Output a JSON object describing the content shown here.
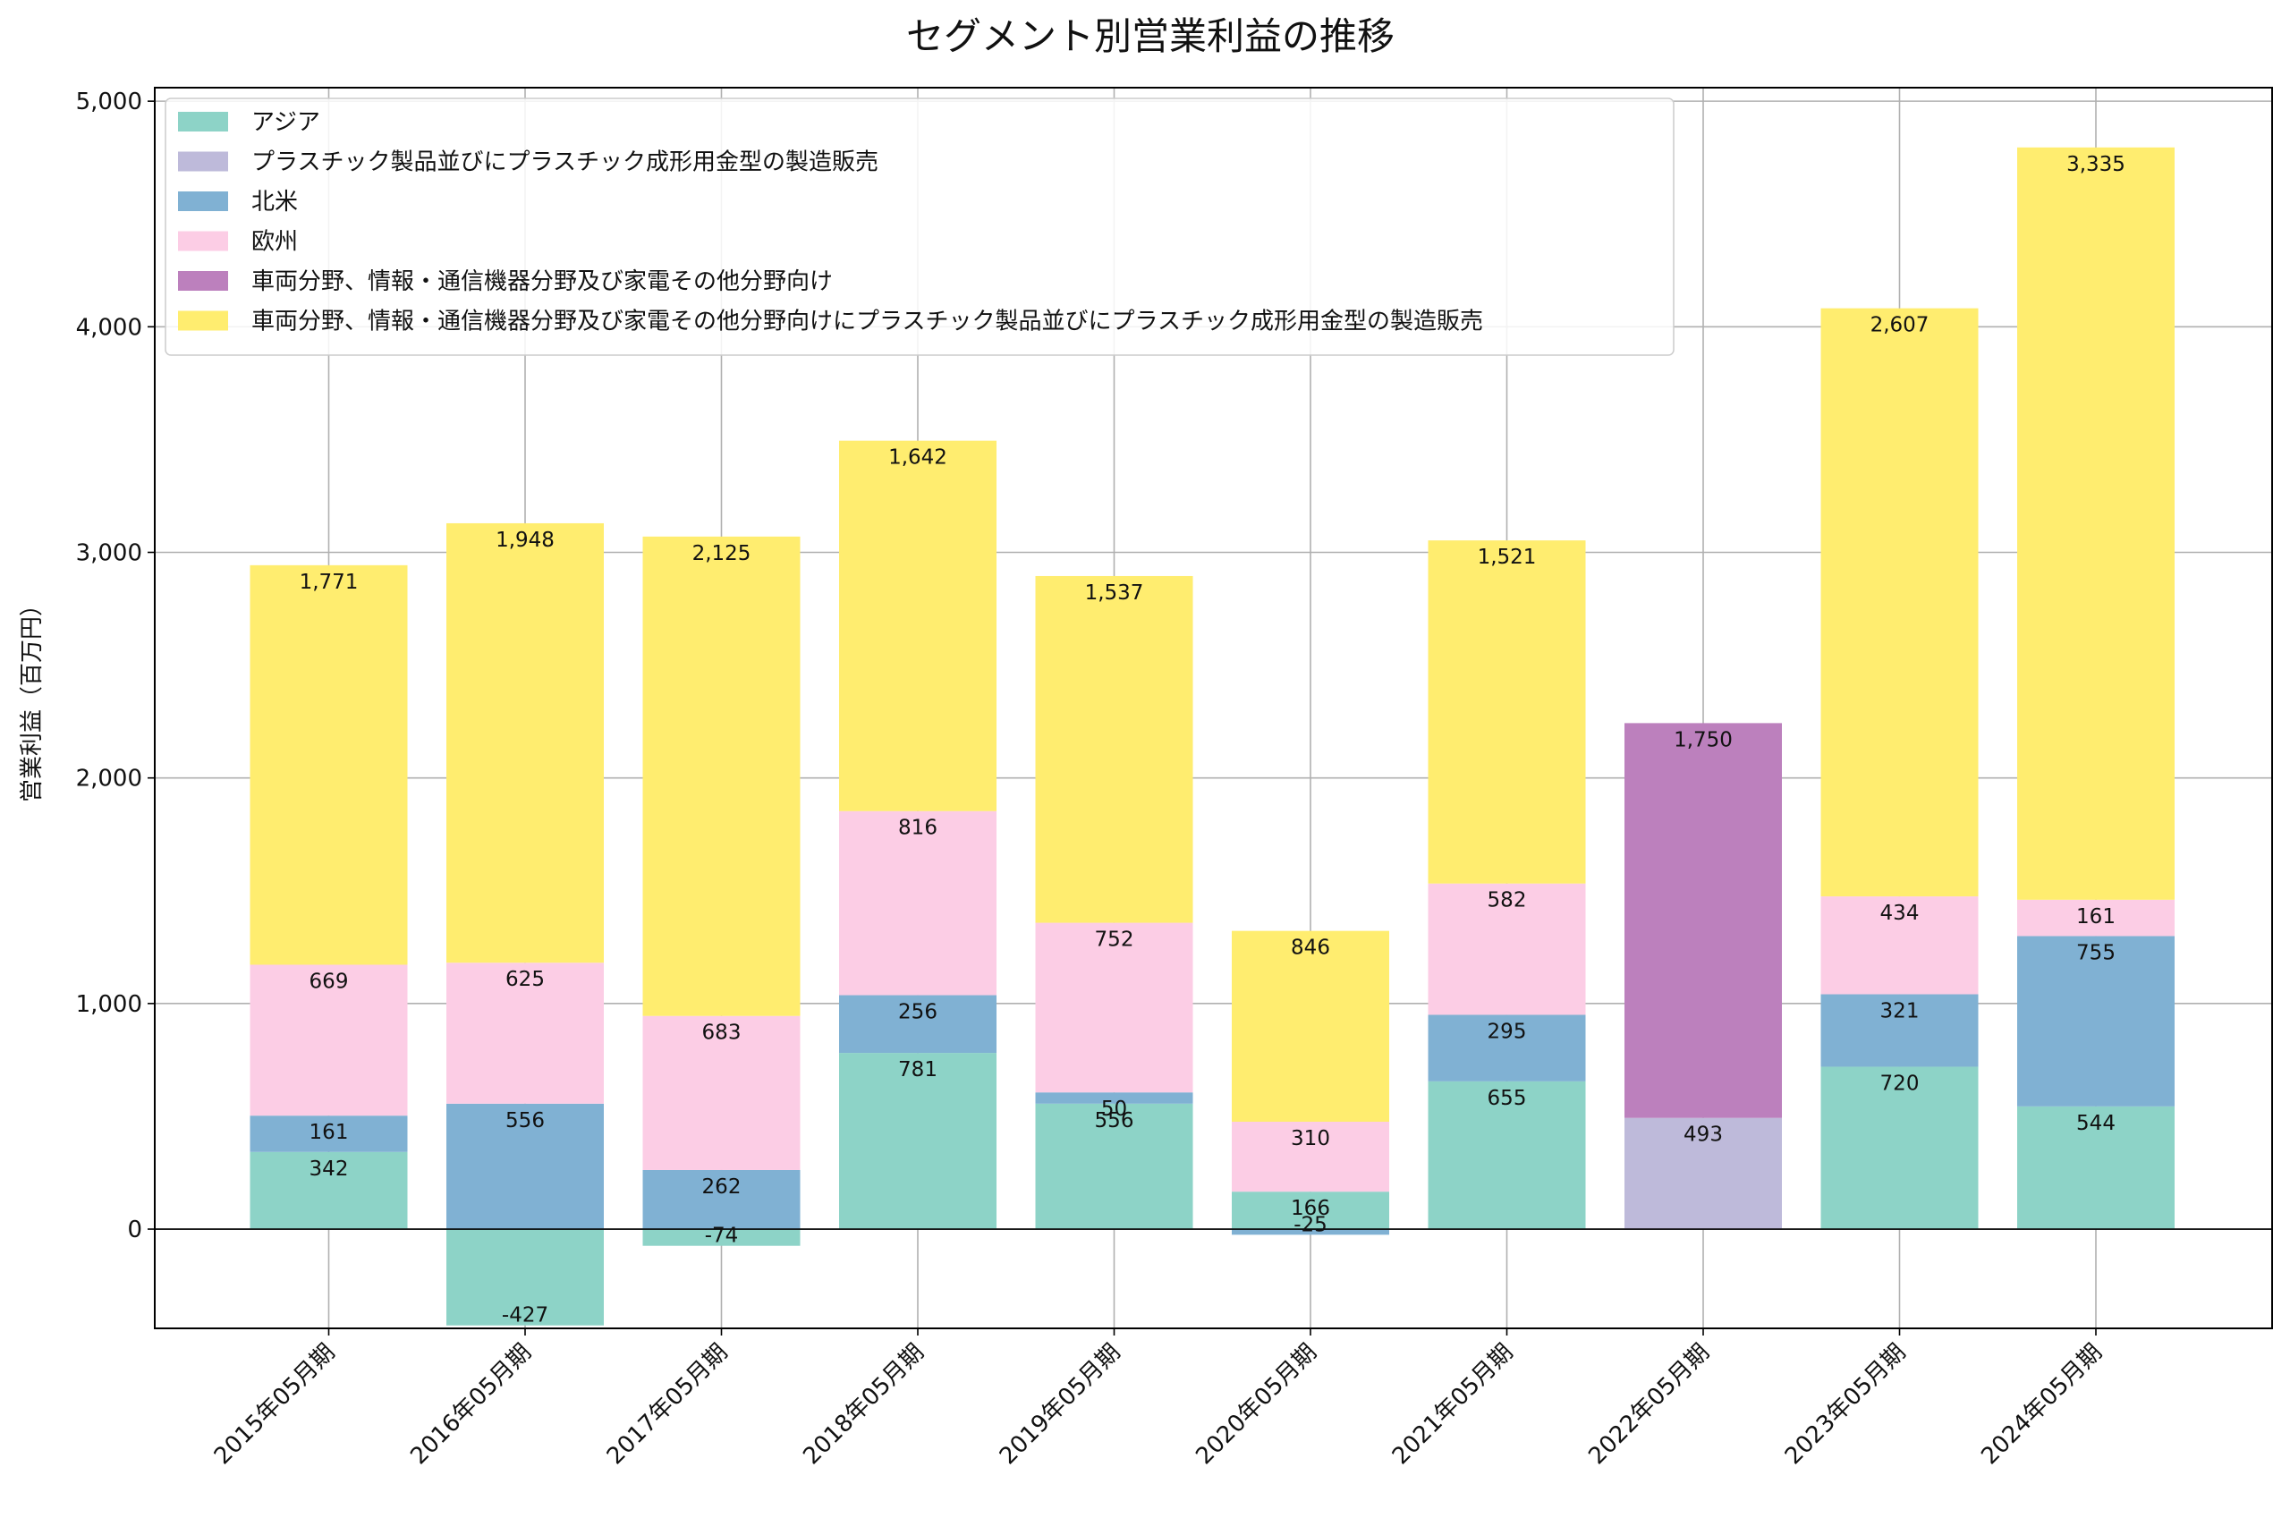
{
  "chart_data": {
    "type": "bar",
    "stacked": true,
    "title": "セグメント別営業利益の推移",
    "ylabel": "営業利益（百万円）",
    "xlabel": "",
    "ylim": [
      -440,
      5060
    ],
    "yticks": [
      0,
      1000,
      2000,
      3000,
      4000,
      5000
    ],
    "ytick_labels": [
      "0",
      "1,000",
      "2,000",
      "3,000",
      "4,000",
      "5,000"
    ],
    "grid": true,
    "legend_position": "top-left",
    "categories": [
      "2015年05月期",
      "2016年05月期",
      "2017年05月期",
      "2018年05月期",
      "2019年05月期",
      "2020年05月期",
      "2021年05月期",
      "2022年05月期",
      "2023年05月期",
      "2024年05月期"
    ],
    "series": [
      {
        "name": "アジア",
        "color": "#8dd3c7",
        "values": [
          342,
          -427,
          -74,
          781,
          556,
          166,
          655,
          null,
          720,
          544
        ]
      },
      {
        "name": "プラスチック製品並びにプラスチック成形用金型の製造販売",
        "color": "#bebada",
        "values": [
          null,
          null,
          null,
          null,
          null,
          null,
          null,
          493,
          null,
          null
        ]
      },
      {
        "name": "北米",
        "color": "#80b1d3",
        "values": [
          161,
          556,
          262,
          256,
          50,
          -25,
          295,
          null,
          321,
          755
        ]
      },
      {
        "name": "欧州",
        "color": "#fccde5",
        "values": [
          669,
          625,
          683,
          816,
          752,
          310,
          582,
          null,
          434,
          161
        ]
      },
      {
        "name": "車両分野、情報・通信機器分野及び家電その他分野向け",
        "color": "#bc80bd",
        "values": [
          null,
          null,
          null,
          null,
          null,
          null,
          null,
          1750,
          null,
          null
        ]
      },
      {
        "name": "車両分野、情報・通信機器分野及び家電その他分野向けにプラスチック製品並びにプラスチック成形用金型の製造販売",
        "color": "#ffed6f",
        "values": [
          1771,
          1948,
          2125,
          1642,
          1537,
          846,
          1521,
          null,
          2607,
          3335
        ]
      }
    ],
    "value_labels": [
      [
        "342",
        null,
        "161",
        "669",
        null,
        "1,771"
      ],
      [
        "-427",
        null,
        "556",
        "625",
        null,
        "1,948"
      ],
      [
        "-74",
        null,
        "262",
        "683",
        null,
        "2,125"
      ],
      [
        "781",
        null,
        "256",
        "816",
        null,
        "1,642"
      ],
      [
        "556",
        null,
        "50",
        "752",
        null,
        "1,537"
      ],
      [
        "166",
        null,
        "-25",
        "310",
        null,
        "846"
      ],
      [
        "655",
        null,
        "295",
        "582",
        null,
        "1,521"
      ],
      [
        null,
        "493",
        null,
        null,
        "1,750",
        null
      ],
      [
        "720",
        null,
        "321",
        "434",
        null,
        "2,607"
      ],
      [
        "544",
        null,
        "755",
        "161",
        null,
        "3,335"
      ]
    ]
  }
}
